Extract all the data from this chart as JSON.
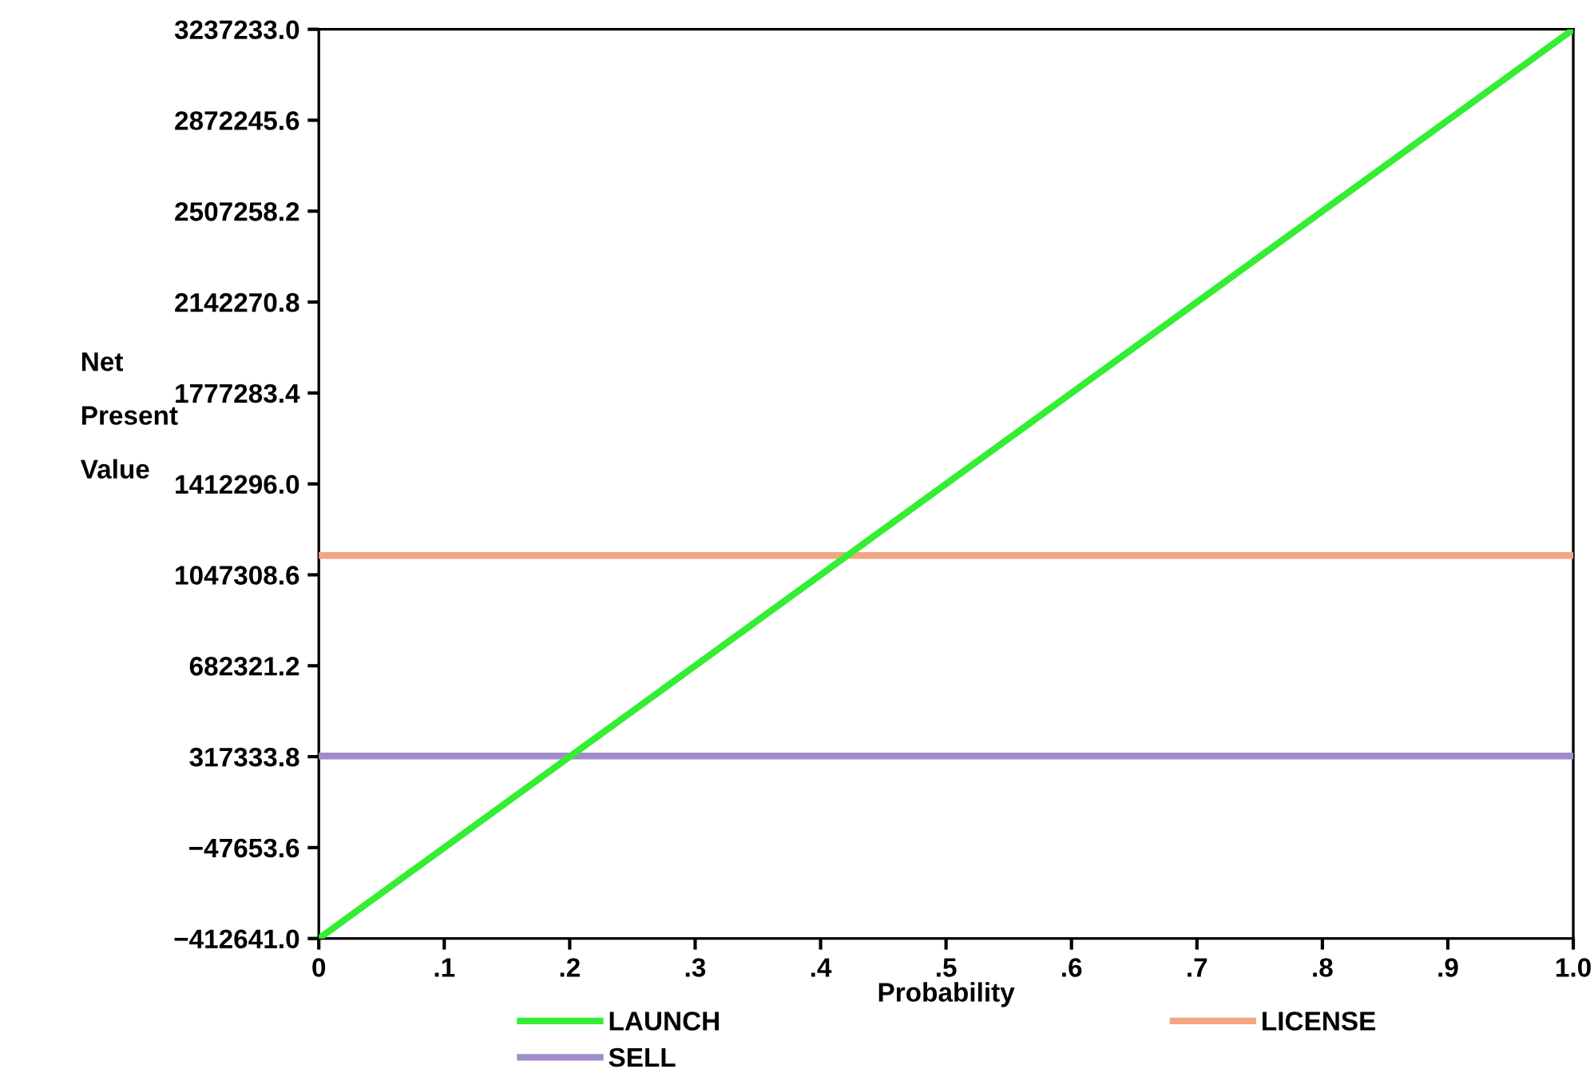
{
  "chart_data": {
    "type": "line",
    "xlabel": "Probability",
    "ylabel": "Net\nPresent\nValue",
    "x": [
      0,
      1.0
    ],
    "series": [
      {
        "name": "LAUNCH",
        "color": "#33ee33",
        "values": [
          -412641,
          3237233
        ]
      },
      {
        "name": "LICENSE",
        "color": "#f4a582",
        "values": [
          1125000,
          1125000
        ]
      },
      {
        "name": "SELL",
        "color": "#a08cc8",
        "values": [
          320000,
          320000
        ]
      }
    ],
    "xlim": [
      0,
      1.0
    ],
    "xticks": [
      0,
      {
        "value": 0.1,
        "label": ".1"
      },
      {
        "value": 0.2,
        "label": ".2"
      },
      {
        "value": 0.3,
        "label": ".3"
      },
      {
        "value": 0.4,
        "label": ".4"
      },
      {
        "value": 0.5,
        "label": ".5"
      },
      {
        "value": 0.6,
        "label": ".6"
      },
      {
        "value": 0.7,
        "label": ".7"
      },
      {
        "value": 0.8,
        "label": ".8"
      },
      {
        "value": 0.9,
        "label": ".9"
      },
      {
        "value": 1.0,
        "label": "1.0"
      }
    ],
    "ylim": [
      -412641.0,
      3237233.0
    ],
    "yticks": [
      {
        "value": -412641.0,
        "label": "−412641.0"
      },
      {
        "value": -47653.6,
        "label": "−47653.6"
      },
      {
        "value": 317333.8,
        "label": "317333.8"
      },
      {
        "value": 682321.2,
        "label": "682321.2"
      },
      {
        "value": 1047308.6,
        "label": "1047308.6"
      },
      {
        "value": 1412296.0,
        "label": "1412296.0"
      },
      {
        "value": 1777283.4,
        "label": "1777283.4"
      },
      {
        "value": 2142270.8,
        "label": "2142270.8"
      },
      {
        "value": 2507258.2,
        "label": "2507258.2"
      },
      {
        "value": 2872245.6,
        "label": "2872245.6"
      },
      {
        "value": 3237233.0,
        "label": "3237233.0"
      }
    ],
    "grid": false,
    "legend": "bottom",
    "marker": "none",
    "line_style": "solid"
  }
}
